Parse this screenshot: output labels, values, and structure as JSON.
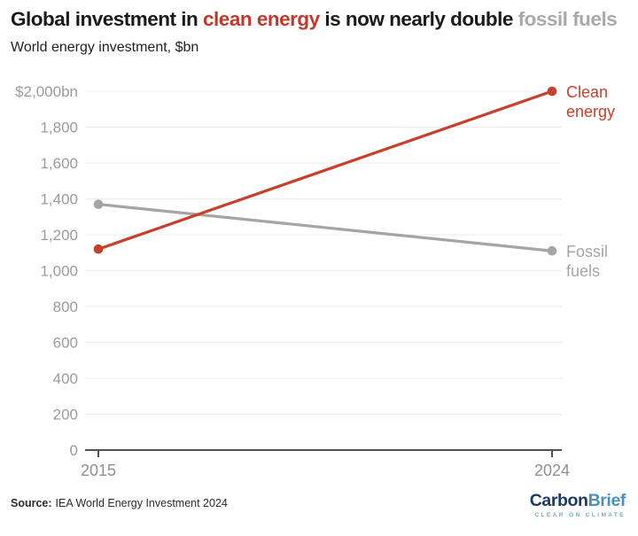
{
  "header": {
    "title_parts": [
      {
        "text": "Global investment in ",
        "color": "#1a1a1a"
      },
      {
        "text": "clean energy",
        "color": "#c0392b"
      },
      {
        "text": " is now nearly double ",
        "color": "#1a1a1a"
      },
      {
        "text": "fossil fuels",
        "color": "#a9a9a9"
      }
    ],
    "subtitle": "World energy investment, $bn"
  },
  "chart_data": {
    "type": "line",
    "x": [
      2015,
      2024
    ],
    "xtick_labels": [
      "2015",
      "2024"
    ],
    "series": [
      {
        "name": "Clean energy",
        "values": [
          1120,
          2000
        ],
        "color": "#c6402c",
        "label_lines": [
          "Clean",
          "energy"
        ]
      },
      {
        "name": "Fossil fuels",
        "values": [
          1370,
          1110
        ],
        "color": "#a5a5a5",
        "label_lines": [
          "Fossil",
          "fuels"
        ]
      }
    ],
    "ylim": [
      0,
      2000
    ],
    "ytick_values": [
      2000,
      1800,
      1600,
      1400,
      1200,
      1000,
      800,
      600,
      400,
      200,
      0
    ],
    "ytick_labels": [
      "$2,000bn",
      "1,800",
      "1,600",
      "1,400",
      "1,200",
      "1,000",
      "800",
      "600",
      "400",
      "200",
      "0"
    ],
    "grid": true,
    "gridline_color": "#ebebeb",
    "axis_color": "#4f4f4f",
    "legend_position": "right-of-line-end",
    "title": "Global investment in clean energy is now nearly double fossil fuels",
    "xlabel": "",
    "ylabel": "World energy investment, $bn"
  },
  "footer": {
    "source_label": "Source:",
    "source_text": "IEA World Energy Investment 2024"
  },
  "logo": {
    "part1": "Carbon",
    "part2": "Brief",
    "tagline": "CLEAR ON CLIMATE",
    "color1": "#1d3b5e",
    "color2": "#4d8fbe",
    "tagline_color": "#6fa9cf"
  }
}
